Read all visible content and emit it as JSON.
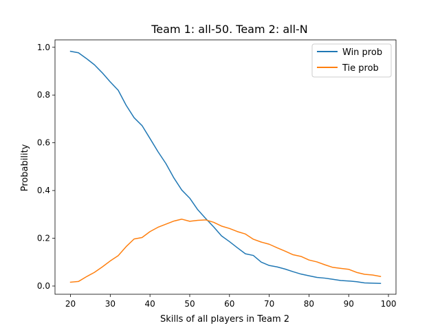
{
  "chart_data": {
    "type": "line",
    "title": "Team 1: all-50.  Team 2: all-N",
    "xlabel": "Skills of all players in Team 2",
    "ylabel": "Probability",
    "xlim": [
      16.1,
      101.9
    ],
    "ylim": [
      -0.0345,
      1.031
    ],
    "xticks": [
      20,
      30,
      40,
      50,
      60,
      70,
      80,
      90,
      100
    ],
    "xtick_labels": [
      "20",
      "30",
      "40",
      "50",
      "60",
      "70",
      "80",
      "90",
      "100"
    ],
    "yticks": [
      0.0,
      0.2,
      0.4,
      0.6,
      0.8,
      1.0
    ],
    "ytick_labels": [
      "0.0",
      "0.2",
      "0.4",
      "0.6",
      "0.8",
      "1.0"
    ],
    "grid": false,
    "legend_position": "top-right",
    "x": [
      20,
      22,
      24,
      26,
      28,
      30,
      32,
      34,
      36,
      38,
      40,
      42,
      44,
      46,
      48,
      50,
      52,
      54,
      56,
      58,
      60,
      62,
      64,
      66,
      68,
      70,
      72,
      74,
      76,
      78,
      80,
      82,
      84,
      86,
      88,
      90,
      92,
      94,
      96,
      98
    ],
    "series": [
      {
        "name": "Win prob",
        "color": "#1f77b4",
        "values": [
          0.983,
          0.977,
          0.953,
          0.927,
          0.893,
          0.855,
          0.82,
          0.757,
          0.705,
          0.672,
          0.618,
          0.563,
          0.513,
          0.453,
          0.402,
          0.368,
          0.32,
          0.283,
          0.248,
          0.21,
          0.186,
          0.16,
          0.135,
          0.128,
          0.1,
          0.086,
          0.08,
          0.071,
          0.06,
          0.05,
          0.043,
          0.036,
          0.033,
          0.028,
          0.023,
          0.021,
          0.018,
          0.013,
          0.012,
          0.011
        ]
      },
      {
        "name": "Tie prob",
        "color": "#ff7f0e",
        "values": [
          0.016,
          0.019,
          0.039,
          0.057,
          0.08,
          0.105,
          0.127,
          0.165,
          0.197,
          0.203,
          0.228,
          0.246,
          0.259,
          0.272,
          0.28,
          0.271,
          0.275,
          0.277,
          0.267,
          0.251,
          0.241,
          0.228,
          0.218,
          0.196,
          0.184,
          0.175,
          0.16,
          0.146,
          0.131,
          0.124,
          0.109,
          0.101,
          0.089,
          0.078,
          0.074,
          0.07,
          0.057,
          0.049,
          0.046,
          0.04
        ]
      }
    ]
  }
}
